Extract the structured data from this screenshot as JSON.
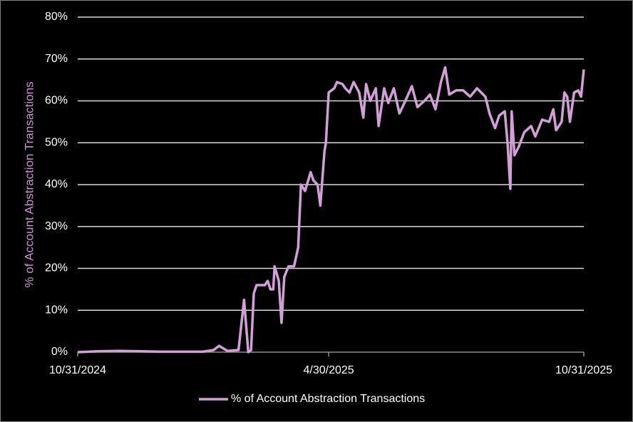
{
  "chart_data": {
    "type": "line",
    "ylabel": "% of Account Abstraction Transactions",
    "x": [
      "10/31/2024",
      "11/15/2024",
      "11/30/2024",
      "12/15/2024",
      "12/30/2024",
      "1/14/2025",
      "1/29/2025",
      "2/6/2025",
      "2/10/2025",
      "2/16/2025",
      "2/24/2025",
      "2/28/2025",
      "3/3/2025",
      "3/5/2025",
      "3/7/2025",
      "3/9/2025",
      "3/15/2025",
      "3/17/2025",
      "3/19/2025",
      "3/21/2025",
      "3/22/2025",
      "3/25/2025",
      "3/27/2025",
      "3/29/2025",
      "4/1/2025",
      "4/5/2025",
      "4/8/2025",
      "4/10/2025",
      "4/13/2025",
      "4/17/2025",
      "4/19/2025",
      "4/22/2025",
      "4/24/2025",
      "4/27/2025",
      "4/28/2025",
      "4/30/2025",
      "5/4/2025",
      "5/6/2025",
      "5/10/2025",
      "5/12/2025",
      "5/15/2025",
      "5/18/2025",
      "5/22/2025",
      "5/25/2025",
      "5/27/2025",
      "5/30/2025",
      "6/3/2025",
      "6/5/2025",
      "6/9/2025",
      "6/12/2025",
      "6/16/2025",
      "6/20/2025",
      "6/25/2025",
      "6/29/2025",
      "7/3/2025",
      "7/8/2025",
      "7/12/2025",
      "7/16/2025",
      "7/20/2025",
      "7/23/2025",
      "7/26/2025",
      "7/31/2025",
      "8/5/2025",
      "8/10/2025",
      "8/15/2025",
      "8/21/2025",
      "8/24/2025",
      "8/28/2025",
      "8/31/2025",
      "9/4/2025",
      "9/6/2025",
      "9/8/2025",
      "9/9/2025",
      "9/11/2025",
      "9/14/2025",
      "9/18/2025",
      "9/23/2025",
      "9/26/2025",
      "10/1/2025",
      "10/6/2025",
      "10/9/2025",
      "10/11/2025",
      "10/15/2025",
      "10/17/2025",
      "10/19/2025",
      "10/21/2025",
      "10/24/2025",
      "10/27/2025",
      "10/29/2025",
      "10/31/2025"
    ],
    "series": [
      {
        "name": "% of Account Abstraction Transactions",
        "color": "#d49fd9",
        "values": [
          0,
          0.2,
          0.3,
          0.2,
          0.1,
          0.1,
          0.1,
          0.5,
          1.5,
          0.3,
          0.5,
          12.5,
          0,
          0.5,
          14,
          16,
          16,
          17,
          15,
          15,
          20.5,
          17,
          7,
          18,
          20.5,
          20.5,
          25,
          40,
          38.5,
          43,
          41,
          40,
          35,
          48,
          50,
          62,
          63,
          64.5,
          64,
          63,
          62,
          64.5,
          62,
          56,
          64,
          60,
          63,
          54,
          63,
          59.5,
          63,
          57,
          60.5,
          63.5,
          58.5,
          60,
          61.5,
          58,
          64.5,
          68,
          61.5,
          62.5,
          62.5,
          61,
          63,
          61,
          57,
          53.5,
          56.5,
          57.5,
          50,
          39,
          57.5,
          47,
          49,
          52.5,
          54,
          51.5,
          55.5,
          55,
          58,
          53,
          55,
          62,
          61,
          55,
          62,
          62.5,
          61,
          67.5
        ]
      }
    ],
    "xlim": [
      "10/31/2024",
      "10/31/2025"
    ],
    "xticks": [
      "10/31/2024",
      "4/30/2025",
      "10/31/2025"
    ],
    "ylim": [
      0,
      80
    ],
    "yticks": [
      {
        "value": 0,
        "label": "0%"
      },
      {
        "value": 10,
        "label": "10%"
      },
      {
        "value": 20,
        "label": "20%"
      },
      {
        "value": 30,
        "label": "30%"
      },
      {
        "value": 40,
        "label": "40%"
      },
      {
        "value": 50,
        "label": "50%"
      },
      {
        "value": 60,
        "label": "60%"
      },
      {
        "value": 70,
        "label": "70%"
      },
      {
        "value": 80,
        "label": "80%"
      }
    ],
    "grid": true,
    "legend": "bottom"
  }
}
